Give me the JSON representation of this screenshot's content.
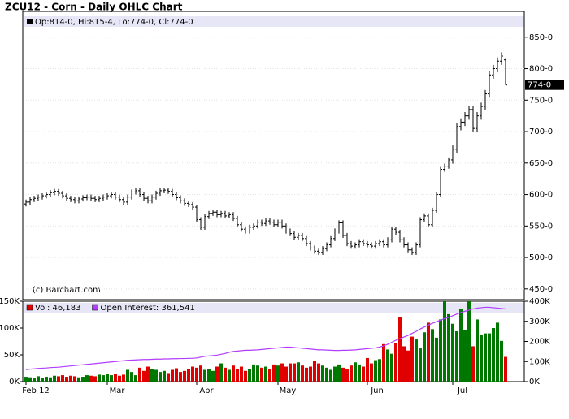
{
  "chart_data": [
    {
      "type": "ohlc",
      "title": "ZCU12 - Corn - Daily OHLC Chart",
      "subtitle": "Op:814-0, Hi:815-4, Lo:774-0, Cl:774-0",
      "annotation": "(c) Barchart.com",
      "last_label": {
        "value": 774,
        "label": "774-0"
      },
      "color": "#000000",
      "grid": true,
      "ylim": [
        433,
        891
      ],
      "yticks": [
        {
          "value": 450,
          "label": "450-0"
        },
        {
          "value": 500,
          "label": "500-0"
        },
        {
          "value": 550,
          "label": "550-0"
        },
        {
          "value": 600,
          "label": "600-0"
        },
        {
          "value": 650,
          "label": "650-0"
        },
        {
          "value": 700,
          "label": "700-0"
        },
        {
          "value": 750,
          "label": "750-0"
        },
        {
          "value": 800,
          "label": "800-0"
        },
        {
          "value": 850,
          "label": "850-0"
        }
      ],
      "open": [
        585,
        588,
        592,
        594,
        596,
        598,
        600,
        603,
        605,
        602,
        598,
        594,
        592,
        590,
        593,
        595,
        596,
        594,
        592,
        594,
        596,
        598,
        600,
        596,
        592,
        588,
        596,
        604,
        606,
        600,
        594,
        590,
        596,
        602,
        606,
        607,
        605,
        600,
        595,
        590,
        586,
        584,
        580,
        560,
        548,
        565,
        570,
        572,
        568,
        570,
        566,
        568,
        562,
        552,
        545,
        542,
        548,
        550,
        556,
        554,
        558,
        556,
        552,
        556,
        550,
        542,
        538,
        532,
        535,
        530,
        522,
        515,
        510,
        508,
        514,
        520,
        530,
        542,
        555,
        535,
        522,
        518,
        520,
        525,
        522,
        520,
        518,
        522,
        525,
        520,
        528,
        545,
        540,
        528,
        520,
        512,
        508,
        520,
        560,
        566,
        552,
        575,
        600,
        640,
        645,
        655,
        672,
        708,
        715,
        725,
        735,
        705,
        725,
        740,
        760,
        790,
        800,
        812,
        814
      ],
      "high": [
        592,
        596,
        598,
        600,
        602,
        604,
        607,
        609,
        609,
        606,
        602,
        598,
        596,
        597,
        599,
        600,
        600,
        598,
        598,
        600,
        602,
        604,
        604,
        600,
        596,
        600,
        608,
        610,
        610,
        604,
        598,
        600,
        606,
        610,
        611,
        611,
        609,
        604,
        599,
        594,
        590,
        588,
        584,
        564,
        569,
        574,
        576,
        576,
        574,
        574,
        572,
        572,
        566,
        556,
        549,
        552,
        554,
        560,
        560,
        562,
        562,
        560,
        560,
        560,
        554,
        546,
        542,
        539,
        539,
        534,
        526,
        519,
        514,
        518,
        524,
        534,
        546,
        559,
        559,
        539,
        526,
        524,
        529,
        529,
        526,
        524,
        526,
        529,
        529,
        532,
        549,
        549,
        544,
        532,
        524,
        516,
        524,
        564,
        570,
        570,
        579,
        604,
        644,
        649,
        659,
        678,
        714,
        721,
        731,
        741,
        741,
        731,
        746,
        766,
        796,
        806,
        818,
        826,
        815.5
      ],
      "low": [
        581,
        584,
        588,
        590,
        592,
        594,
        596,
        599,
        598,
        594,
        590,
        588,
        586,
        586,
        589,
        591,
        590,
        588,
        588,
        590,
        592,
        594,
        592,
        588,
        584,
        584,
        592,
        600,
        596,
        590,
        586,
        586,
        592,
        598,
        602,
        601,
        596,
        591,
        586,
        582,
        580,
        576,
        556,
        544,
        544,
        561,
        566,
        564,
        564,
        562,
        562,
        558,
        548,
        541,
        538,
        538,
        544,
        546,
        550,
        550,
        552,
        548,
        548,
        546,
        538,
        534,
        528,
        528,
        526,
        518,
        511,
        506,
        504,
        504,
        510,
        516,
        526,
        538,
        531,
        518,
        514,
        514,
        516,
        518,
        516,
        514,
        514,
        518,
        516,
        516,
        524,
        536,
        524,
        516,
        508,
        504,
        504,
        516,
        556,
        548,
        548,
        571,
        596,
        636,
        641,
        649,
        666,
        702,
        709,
        719,
        699,
        699,
        719,
        734,
        754,
        784,
        794,
        806,
        774
      ],
      "close": [
        588,
        592,
        594,
        596,
        598,
        600,
        603,
        605,
        602,
        598,
        594,
        592,
        590,
        593,
        595,
        596,
        594,
        592,
        594,
        596,
        598,
        600,
        596,
        592,
        588,
        596,
        604,
        606,
        600,
        594,
        590,
        596,
        602,
        606,
        607,
        605,
        600,
        595,
        590,
        586,
        584,
        580,
        560,
        548,
        565,
        570,
        572,
        568,
        570,
        566,
        568,
        562,
        552,
        545,
        542,
        548,
        550,
        556,
        554,
        558,
        556,
        552,
        556,
        550,
        542,
        538,
        532,
        535,
        530,
        522,
        515,
        510,
        508,
        514,
        520,
        530,
        542,
        555,
        535,
        522,
        518,
        520,
        525,
        522,
        520,
        518,
        522,
        525,
        520,
        528,
        545,
        540,
        528,
        520,
        512,
        508,
        520,
        560,
        566,
        552,
        575,
        600,
        640,
        645,
        655,
        672,
        708,
        715,
        725,
        735,
        705,
        725,
        740,
        760,
        790,
        800,
        812,
        820,
        774
      ]
    },
    {
      "type": "bar",
      "categories": [
        "Feb 12",
        null,
        null,
        null,
        null,
        null,
        null,
        null,
        null,
        null,
        null,
        null,
        null,
        null,
        null,
        null,
        null,
        null,
        null,
        null,
        "Mar",
        null,
        null,
        null,
        null,
        null,
        null,
        null,
        null,
        null,
        null,
        null,
        null,
        null,
        null,
        null,
        null,
        null,
        null,
        null,
        null,
        null,
        "Apr",
        null,
        null,
        null,
        null,
        null,
        null,
        null,
        null,
        null,
        null,
        null,
        null,
        null,
        null,
        null,
        null,
        null,
        null,
        null,
        "May",
        null,
        null,
        null,
        null,
        null,
        null,
        null,
        null,
        null,
        null,
        null,
        null,
        null,
        null,
        null,
        null,
        null,
        null,
        null,
        null,
        null,
        "Jun",
        null,
        null,
        null,
        null,
        null,
        null,
        null,
        null,
        null,
        null,
        null,
        null,
        null,
        null,
        null,
        null,
        null,
        null,
        null,
        null,
        "Jul",
        null,
        null,
        null,
        null,
        null,
        null,
        null,
        null,
        null,
        null,
        null,
        null,
        null
      ],
      "ylim": [
        0,
        150000
      ],
      "yticks": [
        {
          "value": 0,
          "label": "0K"
        },
        {
          "value": 50000,
          "label": "50K"
        },
        {
          "value": 100000,
          "label": "100K"
        },
        {
          "value": 150000,
          "label": "150K"
        }
      ],
      "y2lim": [
        0,
        400000
      ],
      "y2ticks": [
        {
          "value": 0,
          "label": "0K"
        },
        {
          "value": 100000,
          "label": "100K"
        },
        {
          "value": 200000,
          "label": "200K"
        },
        {
          "value": 300000,
          "label": "300K"
        },
        {
          "value": 400000,
          "label": "400K"
        }
      ],
      "series": [
        {
          "name": "Vol: 46,183",
          "color": "#e00000",
          "up_color": "#007700",
          "values": [
            9000,
            8000,
            6000,
            10000,
            7000,
            9000,
            8000,
            11000,
            10000,
            12000,
            9000,
            11000,
            10000,
            8000,
            9000,
            12000,
            11000,
            10000,
            13000,
            12000,
            14000,
            12000,
            15000,
            11000,
            13000,
            22000,
            18000,
            12000,
            26000,
            20000,
            28000,
            24000,
            22000,
            18000,
            20000,
            16000,
            22000,
            25000,
            18000,
            20000,
            24000,
            28000,
            26000,
            30000,
            22000,
            24000,
            20000,
            28000,
            34000,
            26000,
            22000,
            30000,
            24000,
            28000,
            20000,
            24000,
            32000,
            30000,
            26000,
            28000,
            24000,
            32000,
            30000,
            34000,
            28000,
            34000,
            34000,
            36000,
            30000,
            26000,
            28000,
            38000,
            34000,
            30000,
            26000,
            22000,
            28000,
            32000,
            26000,
            24000,
            30000,
            36000,
            32000,
            28000,
            44000,
            34000,
            40000,
            42000,
            70000,
            60000,
            52000,
            72000,
            120000,
            66000,
            58000,
            84000,
            80000,
            62000,
            92000,
            110000,
            98000,
            82000,
            116000,
            150000,
            126000,
            108000,
            94000,
            136000,
            96000,
            150000,
            66000,
            116000,
            88000,
            90000,
            90000,
            100000,
            110000,
            76000,
            46183
          ]
        },
        {
          "name": "Open Interest: 361,541",
          "type": "line",
          "axis": "y2",
          "color": "#b23cff",
          "values": [
            60000,
            62000,
            64000,
            66000,
            67000,
            68000,
            70000,
            71000,
            72000,
            74000,
            76000,
            78000,
            80000,
            82000,
            84000,
            86000,
            88000,
            90000,
            92000,
            94000,
            96000,
            98000,
            100000,
            102000,
            104000,
            106000,
            107000,
            108000,
            109000,
            110000,
            110000,
            111000,
            112000,
            112000,
            113000,
            113000,
            114000,
            114000,
            115000,
            115000,
            116000,
            116000,
            118000,
            122000,
            126000,
            128000,
            130000,
            132000,
            136000,
            140000,
            146000,
            150000,
            152000,
            154000,
            156000,
            156000,
            157000,
            158000,
            160000,
            162000,
            164000,
            166000,
            168000,
            170000,
            172000,
            172000,
            170000,
            168000,
            166000,
            164000,
            162000,
            160000,
            158000,
            158000,
            157000,
            156000,
            155000,
            155000,
            156000,
            156000,
            157000,
            158000,
            160000,
            162000,
            164000,
            166000,
            168000,
            172000,
            178000,
            186000,
            196000,
            206000,
            214000,
            222000,
            230000,
            240000,
            250000,
            262000,
            272000,
            282000,
            290000,
            298000,
            306000,
            314000,
            320000,
            328000,
            336000,
            344000,
            350000,
            356000,
            362000,
            366000,
            368000,
            370000,
            370000,
            368000,
            366000,
            364000,
            361541
          ]
        }
      ]
    }
  ]
}
